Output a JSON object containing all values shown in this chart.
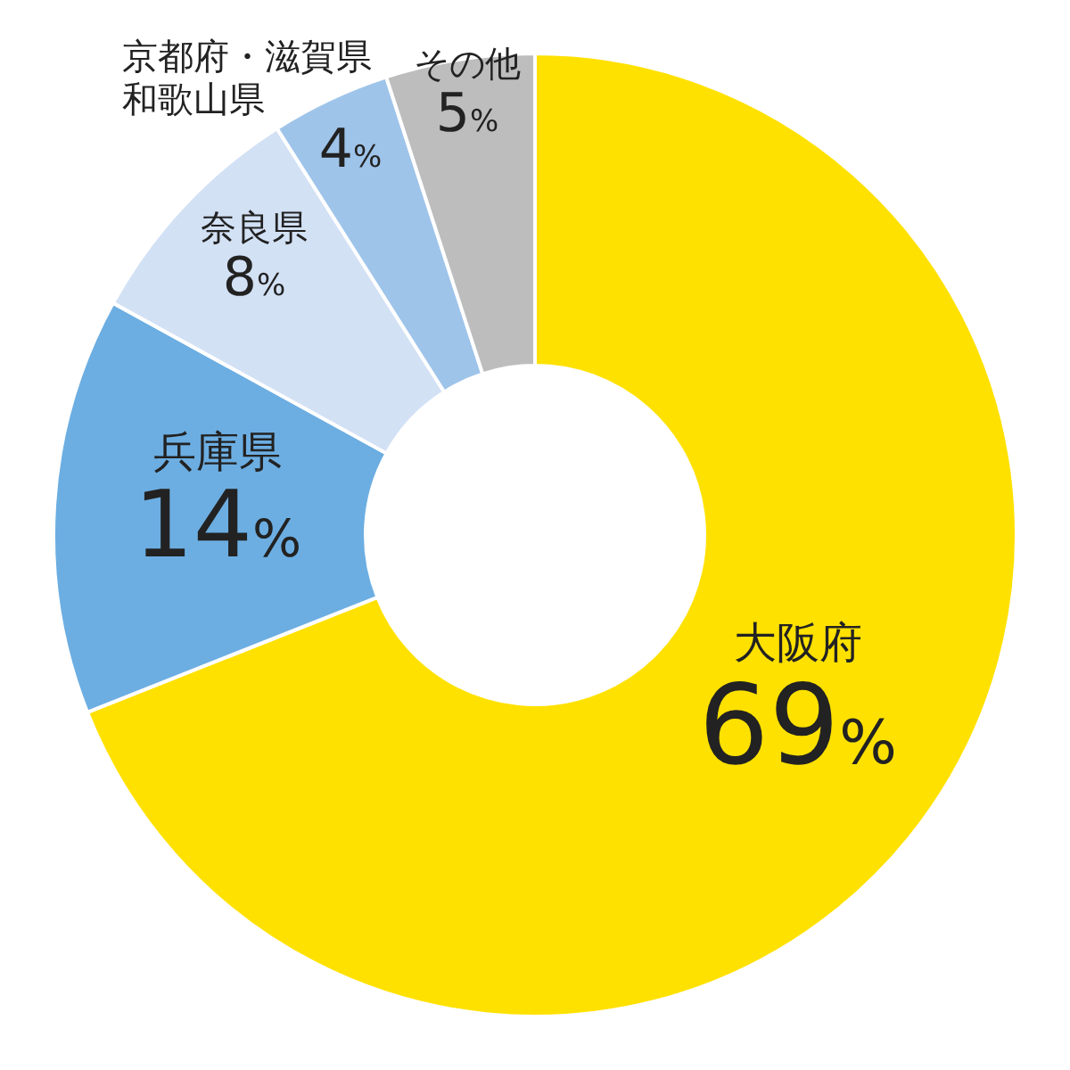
{
  "chart_data": {
    "type": "donut",
    "categories": [
      "大阪府",
      "兵庫県",
      "奈良県",
      "京都府・滋賀県和歌山県",
      "その他"
    ],
    "values": [
      69,
      14,
      8,
      4,
      5
    ],
    "value_labels": [
      "69%",
      "14%",
      "8%",
      "4%",
      "5%"
    ],
    "colors": [
      "#ffe100",
      "#6caee2",
      "#d3e1f5",
      "#9fc4ea",
      "#bdbdbd"
    ]
  }
}
